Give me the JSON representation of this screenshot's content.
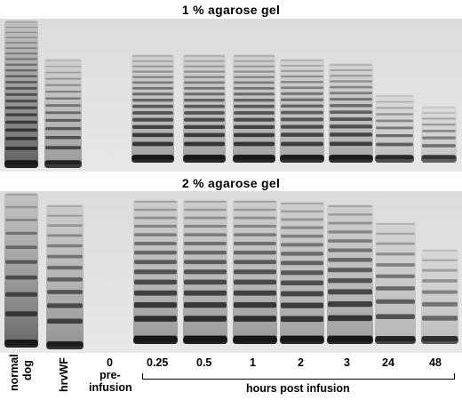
{
  "titles": {
    "gel1": "1 % agarose gel",
    "gel2": "2 % agarose gel"
  },
  "lanes": {
    "normal_line1": "normal",
    "normal_line2": "dog",
    "hrvwf": "hrvWF",
    "zero": "0",
    "pre": "pre-",
    "infusion": "infusion",
    "t025": "0.25",
    "t05": "0.5",
    "t1": "1",
    "t2": "2",
    "t3": "3",
    "t24": "24",
    "t48": "48"
  },
  "axis_caption": "hours post infusion"
}
